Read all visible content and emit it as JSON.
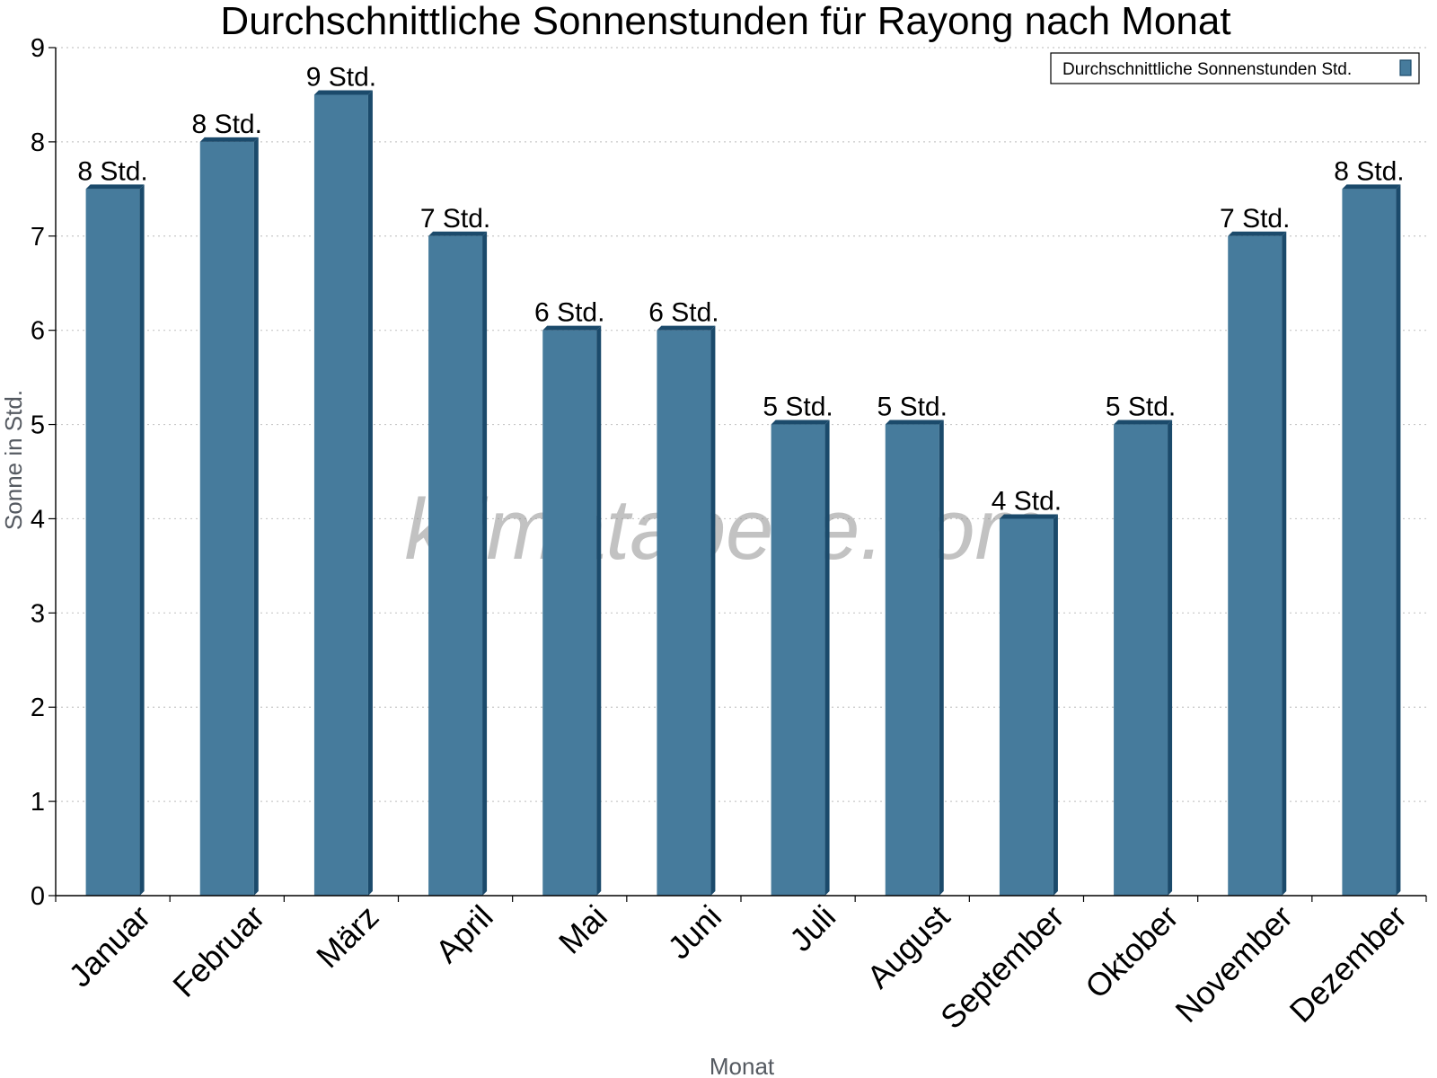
{
  "chart_data": {
    "type": "bar",
    "title": "Durchschnittliche Sonnenstunden für Rayong nach Monat",
    "xlabel": "Monat",
    "ylabel": "Sonne in Std.",
    "ylim": [
      0,
      9
    ],
    "yticks": [
      0,
      1,
      2,
      3,
      4,
      5,
      6,
      7,
      8,
      9
    ],
    "grid": true,
    "legend_position": "top-right",
    "categories": [
      "Januar",
      "Februar",
      "März",
      "April",
      "Mai",
      "Juni",
      "Juli",
      "August",
      "September",
      "Oktober",
      "November",
      "Dezember"
    ],
    "series": [
      {
        "name": "Durchschnittliche Sonnenstunden Std.",
        "values": [
          7.5,
          8,
          8.5,
          7,
          6,
          6,
          5,
          5,
          4,
          5,
          7,
          7.5
        ],
        "labels": [
          "8 Std.",
          "8 Std.",
          "9 Std.",
          "7 Std.",
          "6 Std.",
          "6 Std.",
          "5 Std.",
          "5 Std.",
          "4 Std.",
          "5 Std.",
          "7 Std.",
          "8 Std."
        ],
        "color": "#467b9c",
        "edge_color": "#1b4a6b"
      }
    ],
    "watermark": "klimatabelle.com"
  }
}
